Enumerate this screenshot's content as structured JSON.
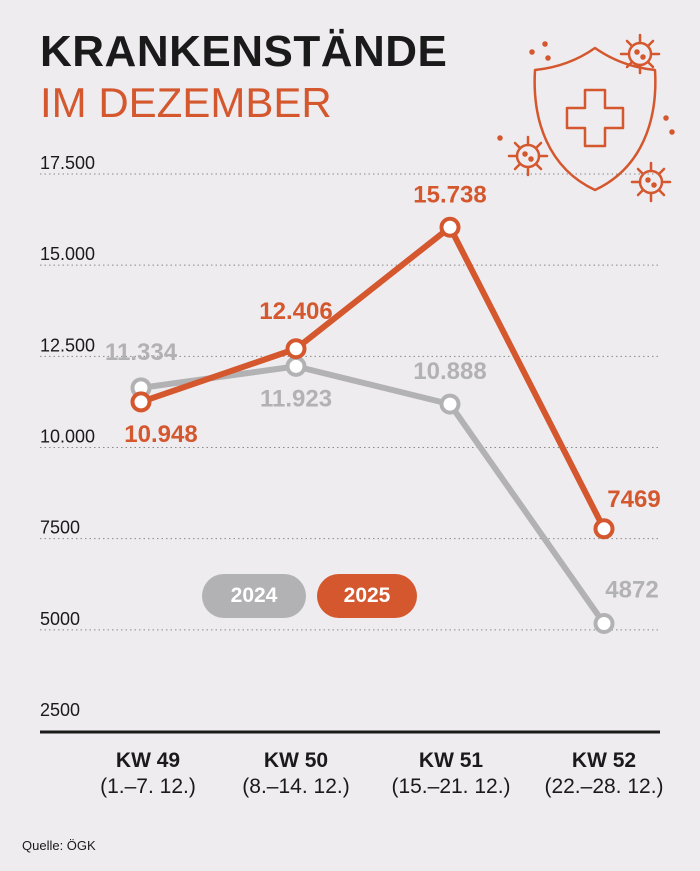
{
  "header": {
    "title": "KRANKENSTÄNDE",
    "subtitle": "IM DEZEMBER"
  },
  "source": "Quelle: ÖGK",
  "legend": {
    "series_2024": "2024",
    "series_2025": "2025"
  },
  "icon": "shield-medical-cross-virus-icon",
  "colors": {
    "series_2024": "#b2b2b4",
    "series_2025": "#d4572e",
    "background": "#eeecef"
  },
  "chart_data": {
    "type": "line",
    "title": "KRANKENSTÄNDE",
    "subtitle": "IM DEZEMBER",
    "categories": [
      "KW 49",
      "KW 50",
      "KW 51",
      "KW 52"
    ],
    "category_ranges": [
      "(1.–7. 12.)",
      "(8.–14. 12.)",
      "(15.–21. 12.)",
      "(22.–28. 12.)"
    ],
    "series": [
      {
        "name": "2024",
        "values": [
          11334,
          11923,
          10888,
          4872
        ],
        "labels": [
          "11.334",
          "11.923",
          "10.888",
          "4872"
        ]
      },
      {
        "name": "2025",
        "values": [
          10948,
          12406,
          15738,
          7469
        ],
        "labels": [
          "10.948",
          "12.406",
          "15.738",
          "7469"
        ]
      }
    ],
    "yticks": [
      2500,
      5000,
      7500,
      10000,
      12500,
      15000,
      17500
    ],
    "ytick_labels": [
      "2500",
      "5000",
      "7500",
      "10.000",
      "12.500",
      "15.000",
      "17.500"
    ],
    "ylim": [
      2500,
      17500
    ],
    "grid": "dotted horizontal",
    "legend_position": "center"
  }
}
